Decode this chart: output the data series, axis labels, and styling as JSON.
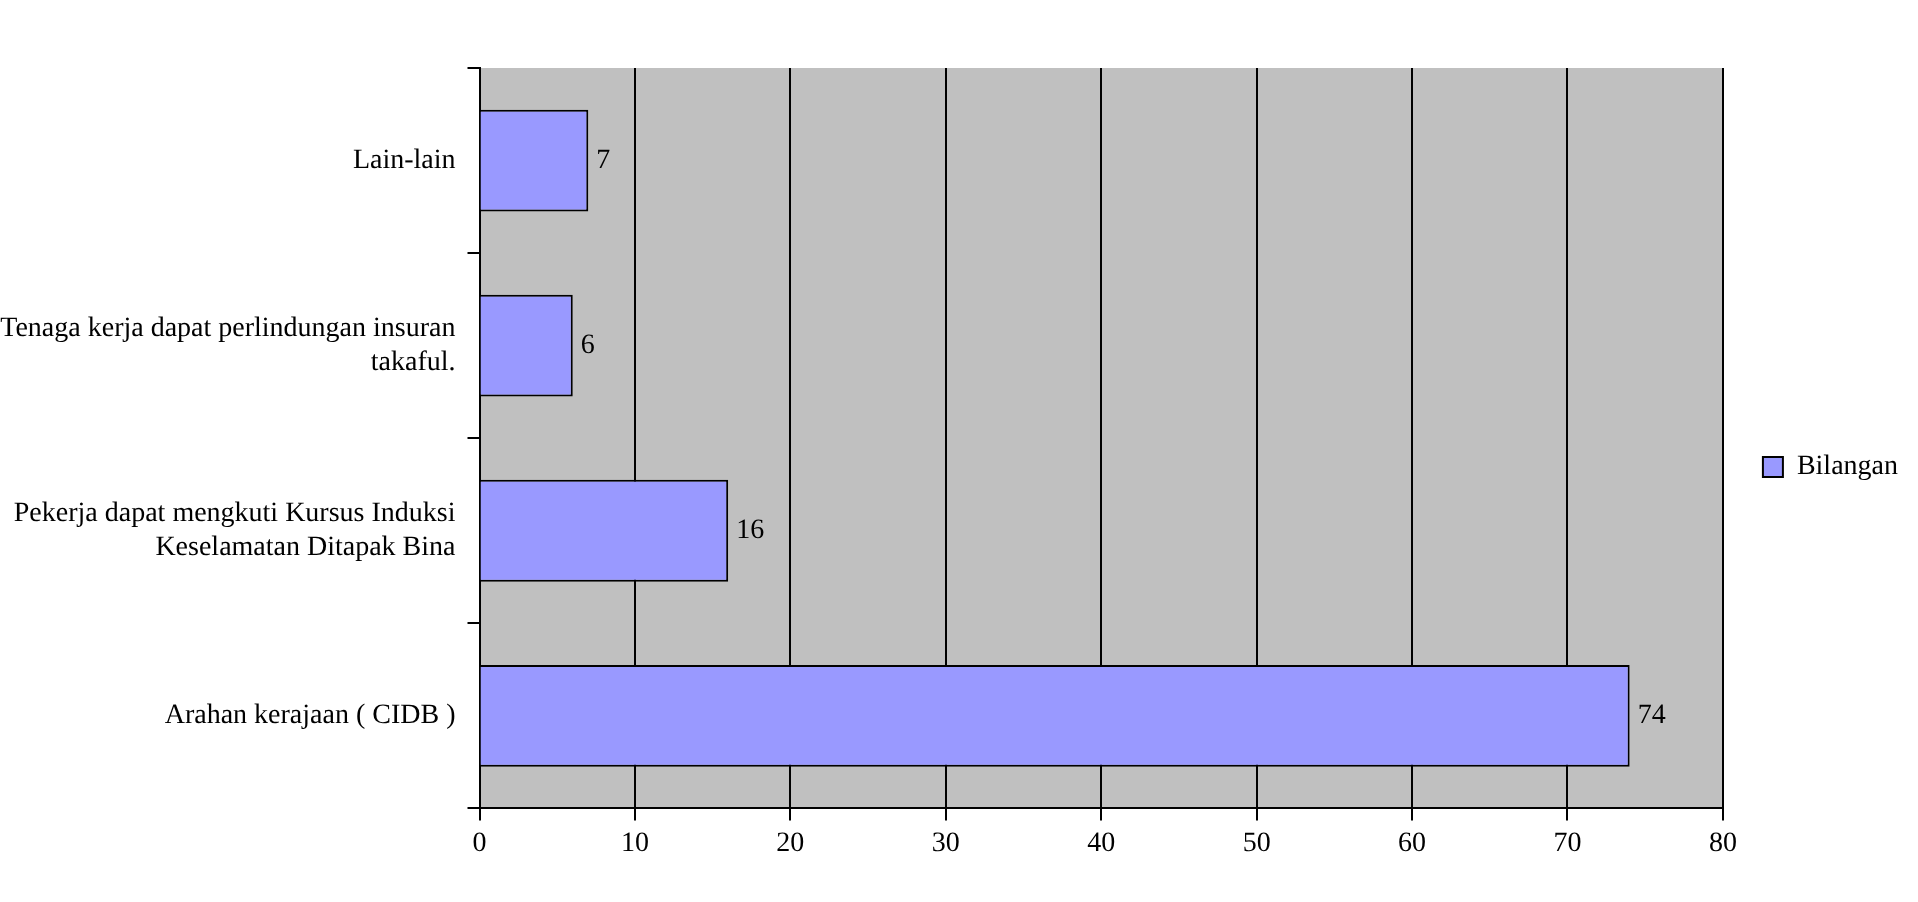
{
  "chart_data": {
    "type": "bar",
    "orientation": "horizontal",
    "categories": [
      "Lain-lain",
      "Tenaga kerja dapat perlindungan insuran takaful.",
      "Pekerja dapat mengkuti Kursus Induksi Keselamatan Ditapak Bina",
      "Arahan kerajaan ( CIDB )"
    ],
    "series": [
      {
        "name": "Bilangan",
        "color": "#9999ff",
        "values": [
          7,
          6,
          16,
          74
        ]
      }
    ],
    "xlim": [
      0,
      80
    ],
    "xticks": [
      0,
      10,
      20,
      30,
      40,
      50,
      60,
      70,
      80
    ],
    "grid": "x",
    "legend": "right",
    "data_labels": true
  }
}
